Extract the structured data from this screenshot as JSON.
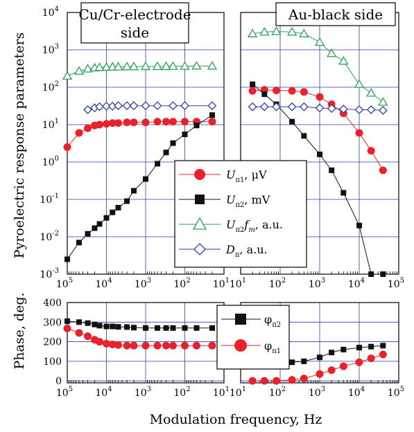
{
  "ylabel_top": "Pyroelectric response parameters",
  "ylabel_bottom": "Phase, deg.",
  "xlabel": "Modulation frequency, Hz",
  "colors": {
    "U_pi1": "#e8212a",
    "U_pi2": "#111111",
    "U_pi2_fm": "#2a9d5a",
    "D_pi": "#2a3ea8",
    "grid": "#2a3ea8"
  },
  "chart_data": [
    {
      "id": "top-left",
      "type": "line",
      "title": "Cu/Cr-electrode side",
      "title_lines": [
        "Cu/Cr-electrode",
        "side"
      ],
      "x_scale": "log",
      "x_reversed": true,
      "xlim": [
        100000,
        10
      ],
      "y_scale": "log",
      "ylim": [
        0.001,
        10000
      ],
      "x_ticks": [
        100000,
        10000,
        1000,
        100,
        10
      ],
      "x_tick_exps": [
        "5",
        "4",
        "3",
        "2",
        "1"
      ],
      "y_ticks": [
        0.001,
        0.01,
        0.1,
        1,
        10,
        100,
        1000,
        10000
      ],
      "y_tick_exps": [
        "-3",
        "-2",
        "-1",
        "0",
        "1",
        "2",
        "3",
        "4"
      ],
      "grid": true,
      "series": [
        {
          "key": "U_pi1",
          "x": [
            100000,
            50000,
            30000,
            20000,
            15000,
            10000,
            7000,
            5000,
            3000,
            2000,
            1000,
            500,
            300,
            200,
            100,
            50,
            20
          ],
          "y": [
            2.5,
            6,
            8,
            9.5,
            10,
            10.5,
            11,
            11,
            11.5,
            11.5,
            11.5,
            12,
            12,
            12,
            12,
            12,
            12
          ]
        },
        {
          "key": "U_pi2",
          "x": [
            100000,
            50000,
            30000,
            20000,
            15000,
            10000,
            7000,
            5000,
            3000,
            2000,
            1000,
            500,
            300,
            200,
            100,
            50,
            20
          ],
          "y": [
            0.0025,
            0.007,
            0.012,
            0.017,
            0.022,
            0.032,
            0.045,
            0.06,
            0.09,
            0.17,
            0.35,
            0.9,
            1.8,
            3.2,
            5.5,
            9.5,
            18
          ]
        },
        {
          "key": "U_pi2_fm",
          "x": [
            100000,
            50000,
            30000,
            20000,
            15000,
            10000,
            7000,
            5000,
            3000,
            2000,
            1000,
            500,
            300,
            200,
            100,
            50,
            20
          ],
          "y": [
            200,
            270,
            310,
            330,
            340,
            345,
            350,
            350,
            355,
            355,
            360,
            360,
            360,
            365,
            365,
            370,
            370
          ]
        },
        {
          "key": "D_pi",
          "x": [
            30000,
            20000,
            15000,
            10000,
            7000,
            5000,
            3000,
            2000,
            1000,
            500,
            200,
            100,
            20
          ],
          "y": [
            25,
            28,
            30,
            31,
            31,
            32,
            32,
            32,
            32,
            32,
            32,
            32,
            32
          ]
        }
      ]
    },
    {
      "id": "top-right",
      "type": "line",
      "title": "Au-black side",
      "title_lines": [
        "Au-black side"
      ],
      "x_scale": "log",
      "xlim": [
        10,
        100000
      ],
      "y_scale": "log",
      "ylim": [
        0.001,
        10000
      ],
      "x_ticks": [
        10,
        100,
        1000,
        10000,
        100000
      ],
      "x_tick_exps": [
        "1",
        "2",
        "3",
        "4",
        "5"
      ],
      "grid": true,
      "series": [
        {
          "key": "U_pi1",
          "x": [
            20,
            40,
            80,
            200,
            400,
            1000,
            2000,
            4000,
            10000,
            20000,
            40000
          ],
          "y": [
            80,
            85,
            82,
            80,
            75,
            55,
            35,
            20,
            6,
            2,
            0.6
          ]
        },
        {
          "key": "U_pi2",
          "x": [
            20,
            40,
            80,
            200,
            400,
            1000,
            2000,
            4000,
            10000,
            20000,
            40000
          ],
          "y": [
            120,
            65,
            35,
            12,
            5,
            1.6,
            0.6,
            0.15,
            0.02,
            0.001,
            0.001
          ]
        },
        {
          "key": "U_pi2_fm",
          "x": [
            20,
            40,
            80,
            200,
            400,
            1000,
            2000,
            4000,
            10000,
            20000,
            40000
          ],
          "y": [
            2700,
            3000,
            3100,
            3000,
            2700,
            1600,
            800,
            500,
            120,
            70,
            40
          ]
        },
        {
          "key": "D_pi",
          "x": [
            20,
            40,
            80,
            200,
            400,
            1000,
            2000,
            4000,
            10000,
            20000,
            40000
          ],
          "y": [
            30,
            30,
            30,
            30,
            30,
            28,
            27,
            26,
            25,
            25,
            24
          ]
        }
      ]
    },
    {
      "id": "bottom-left",
      "type": "line",
      "x_scale": "log",
      "x_reversed": true,
      "xlim": [
        100000,
        10
      ],
      "ylim": [
        -10,
        400
      ],
      "x_ticks": [
        100000,
        10000,
        1000,
        100,
        10
      ],
      "x_tick_exps": [
        "5",
        "4",
        "3",
        "2",
        "1"
      ],
      "y_ticks": [
        0,
        100,
        200,
        300,
        400
      ],
      "y_tick_labels": [
        "0",
        "100",
        "200",
        "300",
        "400"
      ],
      "grid": true,
      "series": [
        {
          "key": "phi_pi2",
          "x": [
            100000,
            50000,
            30000,
            20000,
            15000,
            10000,
            7000,
            5000,
            3000,
            2000,
            1000,
            500,
            300,
            200,
            100,
            50,
            20
          ],
          "y": [
            305,
            300,
            295,
            288,
            282,
            278,
            278,
            276,
            275,
            272,
            270,
            270,
            270,
            270,
            270,
            270,
            270
          ]
        },
        {
          "key": "phi_pi1",
          "x": [
            100000,
            50000,
            30000,
            20000,
            15000,
            10000,
            7000,
            5000,
            3000,
            2000,
            1000,
            500,
            300,
            200,
            100,
            50,
            20
          ],
          "y": [
            268,
            245,
            228,
            210,
            200,
            190,
            186,
            183,
            180,
            180,
            180,
            180,
            180,
            180,
            180,
            180,
            180
          ]
        }
      ]
    },
    {
      "id": "bottom-right",
      "type": "line",
      "x_scale": "log",
      "xlim": [
        10,
        100000
      ],
      "ylim": [
        -10,
        400
      ],
      "x_ticks": [
        10,
        100,
        1000,
        10000,
        100000
      ],
      "x_tick_exps": [
        "1",
        "2",
        "3",
        "4",
        "5"
      ],
      "grid": true,
      "series": [
        {
          "key": "phi_pi2",
          "x": [
            20,
            40,
            80,
            200,
            400,
            1000,
            2000,
            4000,
            10000,
            20000,
            40000
          ],
          "y": [
            95,
            92,
            90,
            95,
            100,
            120,
            145,
            160,
            170,
            175,
            180
          ]
        },
        {
          "key": "phi_pi1",
          "x": [
            20,
            40,
            80,
            200,
            400,
            1000,
            2000,
            4000,
            10000,
            20000,
            40000
          ],
          "y": [
            0,
            0,
            0,
            5,
            12,
            35,
            55,
            75,
            95,
            115,
            135
          ]
        }
      ]
    }
  ],
  "legend_top": [
    {
      "key": "U_pi1",
      "label_main": "U",
      "label_sub": "π1",
      "label_rest": ", μV",
      "marker": "circle-filled"
    },
    {
      "key": "U_pi2",
      "label_main": "U",
      "label_sub": "π2",
      "label_rest": ", mV",
      "marker": "square-filled"
    },
    {
      "key": "U_pi2_fm",
      "label_main": "U",
      "label_sub": "π2",
      "label_mid": "f",
      "label_sub2": "m",
      "label_rest": ",  a.u.",
      "marker": "triangle-open"
    },
    {
      "key": "D_pi",
      "label_main": "D",
      "label_sub": "π",
      "label_rest": ", a.u.",
      "marker": "diamond-open"
    }
  ],
  "legend_bottom": [
    {
      "key": "phi_pi2",
      "label_main": "φ",
      "label_sub": "π2",
      "marker": "square-filled"
    },
    {
      "key": "phi_pi1",
      "label_main": "φ",
      "label_sub": "π1",
      "marker": "circle-filled"
    }
  ]
}
